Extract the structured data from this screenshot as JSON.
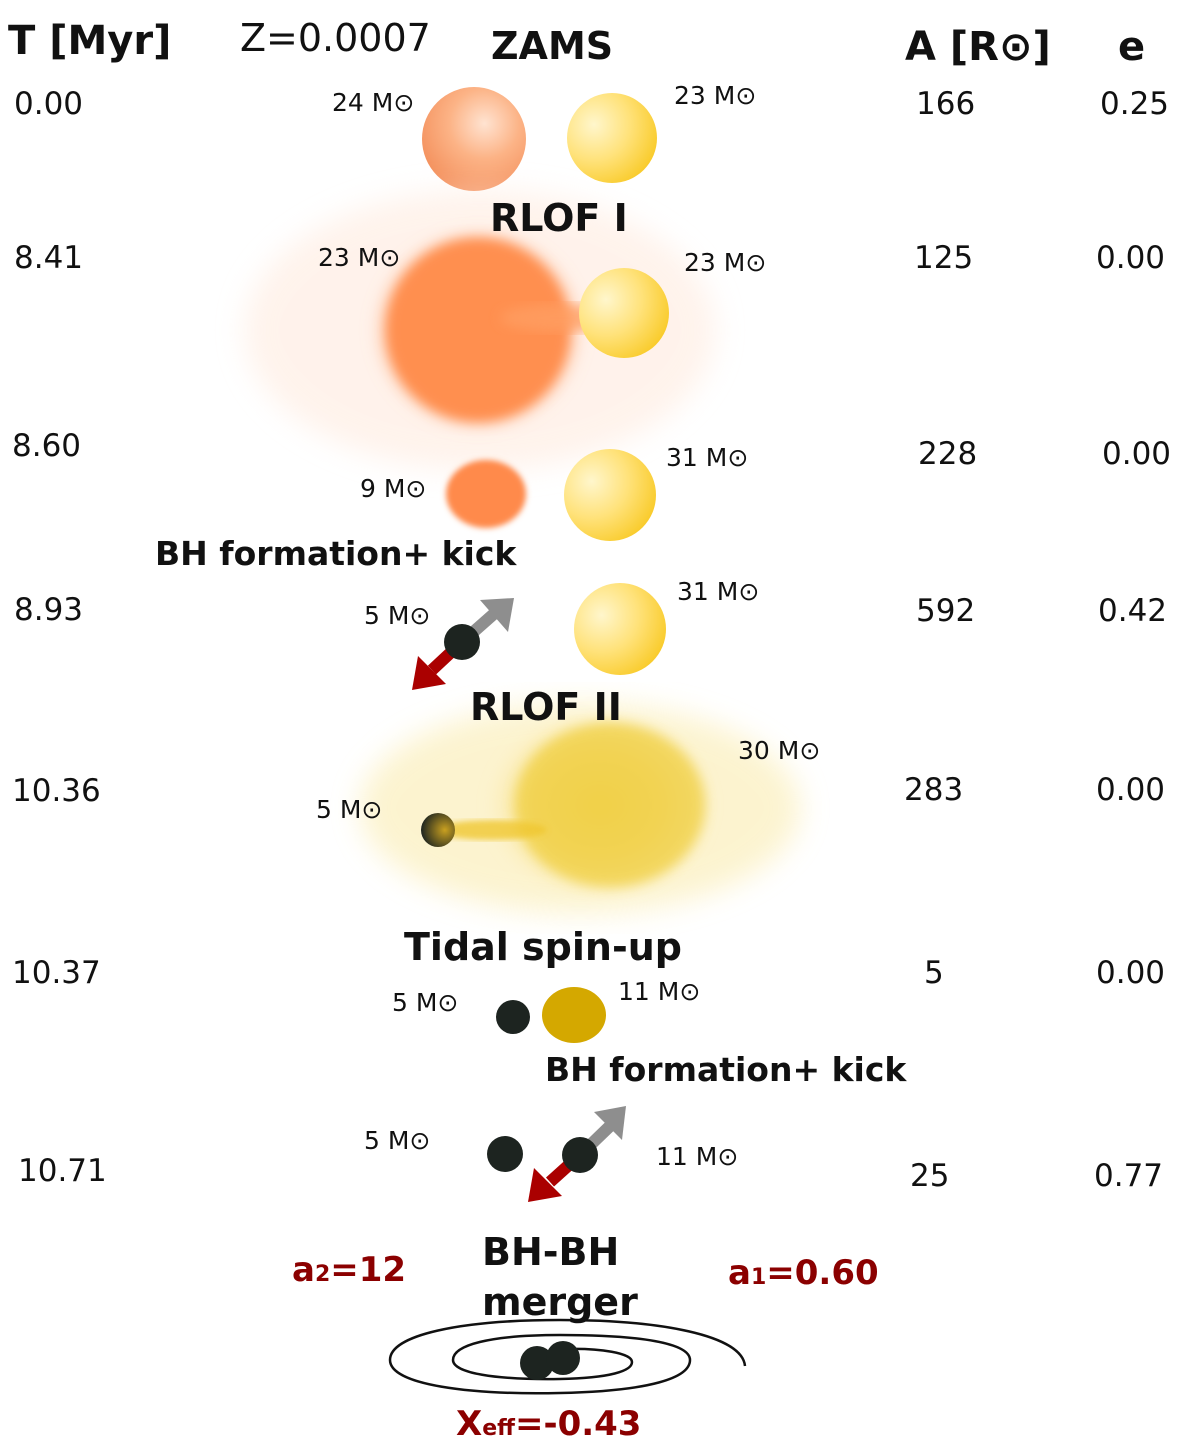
{
  "header": {
    "time": "T [Myr]",
    "metallicity": "Z=0.0007",
    "separation": "A [R⊙]",
    "eccentricity": "e"
  },
  "labels": {
    "zams": "ZAMS",
    "rlof1": "RLOF I",
    "bh_kick_1": "BH formation+ kick",
    "rlof2": "RLOF II",
    "tidal": "Tidal spin-up",
    "bh_kick_2": "BH formation+ kick",
    "merger_line1": "BH-BH",
    "merger_line2": "merger"
  },
  "rows": [
    {
      "time": "0.00",
      "sep": "166",
      "ecc": "0.25",
      "m1": "24 M⊙",
      "m2": "23 M⊙"
    },
    {
      "time": "8.41",
      "sep": "125",
      "ecc": "0.00",
      "m1": "23 M⊙",
      "m2": "23 M⊙"
    },
    {
      "time": "8.60",
      "sep": "228",
      "ecc": "0.00",
      "m1": "9 M⊙",
      "m2": "31 M⊙"
    },
    {
      "time": "8.93",
      "sep": "592",
      "ecc": "0.42",
      "m1": "5 M⊙",
      "m2": "31 M⊙"
    },
    {
      "time": "10.36",
      "sep": "283",
      "ecc": "0.00",
      "m1": "5 M⊙",
      "m2": "30 M⊙"
    },
    {
      "time": "10.37",
      "sep": "5",
      "ecc": "0.00",
      "m1": "5 M⊙",
      "m2": "11 M⊙"
    },
    {
      "time": "10.71",
      "sep": "25",
      "ecc": "0.77",
      "m1": "5 M⊙",
      "m2": "11 M⊙"
    }
  ],
  "spins": {
    "a2_sym": "a",
    "a2_sub": "2",
    "a2_val": "=12",
    "a1_sym": "a",
    "a1_sub": "1",
    "a1_val": "=0.60",
    "chi_sym": "X",
    "chi_sub": "eff",
    "chi_val": "=-0.43"
  },
  "colors": {
    "donor": "#ff8c4a",
    "companion": "#ffd23a",
    "bh": "#1d2420",
    "kick_red": "#aa0000",
    "kick_gray": "#8e8e8e",
    "stripped": "#d4a800"
  }
}
